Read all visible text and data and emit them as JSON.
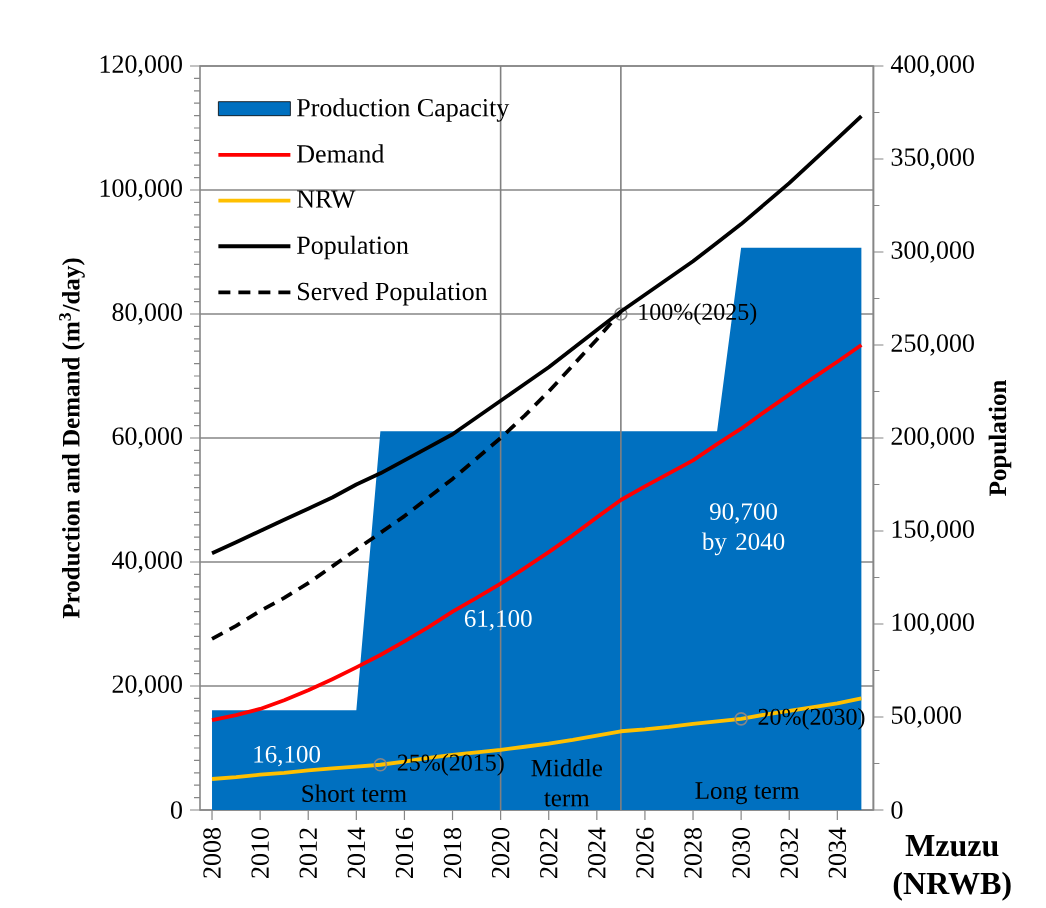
{
  "chart_data": {
    "type": "line",
    "xlabel": "Mzuzu (NRWB)",
    "ylabel": "Production and Demand (m$^{3}$/day)",
    "y2label": "Population",
    "x": [
      2008,
      2009,
      2010,
      2011,
      2012,
      2013,
      2014,
      2015,
      2016,
      2017,
      2018,
      2019,
      2020,
      2021,
      2022,
      2023,
      2024,
      2025,
      2026,
      2027,
      2028,
      2029,
      2030,
      2031,
      2032,
      2033,
      2034,
      2035
    ],
    "xlim": [
      2007.5,
      2035.5
    ],
    "xticks": [
      2008,
      2010,
      2012,
      2014,
      2016,
      2018,
      2020,
      2022,
      2024,
      2026,
      2028,
      2030,
      2032,
      2034
    ],
    "ylim": [
      0,
      120000
    ],
    "yticks": [
      0,
      {
        "value": 20000,
        "label": "20,000"
      },
      {
        "value": 40000,
        "label": "40,000"
      },
      {
        "value": 60000,
        "label": "60,000"
      },
      {
        "value": 80000,
        "label": "80,000"
      },
      {
        "value": 100000,
        "label": "100,000"
      },
      {
        "value": 120000,
        "label": "120,000"
      }
    ],
    "y2lim": [
      0,
      400000
    ],
    "y2ticks": [
      0,
      {
        "value": 50000,
        "label": "50,000"
      },
      {
        "value": 100000,
        "label": "100,000"
      },
      {
        "value": 150000,
        "label": "150,000"
      },
      {
        "value": 200000,
        "label": "200,000"
      },
      {
        "value": 250000,
        "label": "250,000"
      },
      {
        "value": 300000,
        "label": "300,000"
      },
      {
        "value": 350000,
        "label": "350,000"
      },
      {
        "value": 400000,
        "label": "400,000"
      }
    ],
    "grid": "y",
    "legend": "top left",
    "series": [
      {
        "name": "Production Capacity",
        "type": "area",
        "color": "#0070c0",
        "values": [
          16100,
          16100,
          16100,
          16100,
          16100,
          16100,
          16100,
          61100,
          61100,
          61100,
          61100,
          61100,
          61100,
          61100,
          61100,
          61100,
          61100,
          61100,
          61100,
          61100,
          61100,
          61100,
          90700,
          90700,
          90700,
          90700,
          90700,
          90700
        ]
      },
      {
        "name": "Demand",
        "color": "#ff0000",
        "values": [
          14500,
          15300,
          16300,
          17700,
          19300,
          21100,
          23000,
          25000,
          27200,
          29500,
          32000,
          34200,
          36500,
          39000,
          41600,
          44300,
          47200,
          50000,
          52200,
          54300,
          56400,
          59000,
          61500,
          64300,
          67000,
          69700,
          72300,
          75000
        ]
      },
      {
        "name": "NRW",
        "color": "#ffc000",
        "values": [
          5000,
          5300,
          5700,
          6000,
          6400,
          6700,
          7000,
          7300,
          7800,
          8400,
          8900,
          9300,
          9700,
          10200,
          10700,
          11300,
          12000,
          12700,
          13000,
          13400,
          13900,
          14300,
          14700,
          15400,
          16000,
          16600,
          17200,
          18000
        ]
      },
      {
        "name": "Population",
        "axis": "y2",
        "color": "#000000",
        "values": [
          138000,
          144000,
          150000,
          156000,
          162000,
          168000,
          175000,
          181000,
          188000,
          195000,
          202000,
          211000,
          220000,
          229000,
          238000,
          248000,
          258000,
          268000,
          277000,
          286000,
          295000,
          305000,
          315000,
          326000,
          337000,
          349000,
          361000,
          373000
        ]
      },
      {
        "name": "Served Population",
        "axis": "y2",
        "color": "#000000",
        "line_style": "dashed",
        "values": [
          92000,
          99000,
          107000,
          114000,
          122000,
          131000,
          140000,
          149000,
          158000,
          168000,
          178000,
          189000,
          200000,
          212000,
          225000,
          239000,
          253000,
          268000,
          null,
          null,
          null,
          null,
          null,
          null,
          null,
          null,
          null,
          null
        ]
      }
    ],
    "ref_lines": [
      {
        "axis": "x",
        "value": 2020,
        "color": "#808080"
      },
      {
        "axis": "x",
        "value": 2025,
        "color": "#808080"
      }
    ],
    "annotations": [
      "16,100",
      "61,100",
      "90,700 by 2040",
      {
        "text": "100%(2025)",
        "x": 2025,
        "y": 80000
      },
      {
        "text": "25%(2015)",
        "x": 2015,
        "y": 7300
      },
      {
        "text": "20%(2030)",
        "x": 2030,
        "y": 14700
      },
      "Short term",
      "Middle term",
      "Long term"
    ]
  }
}
